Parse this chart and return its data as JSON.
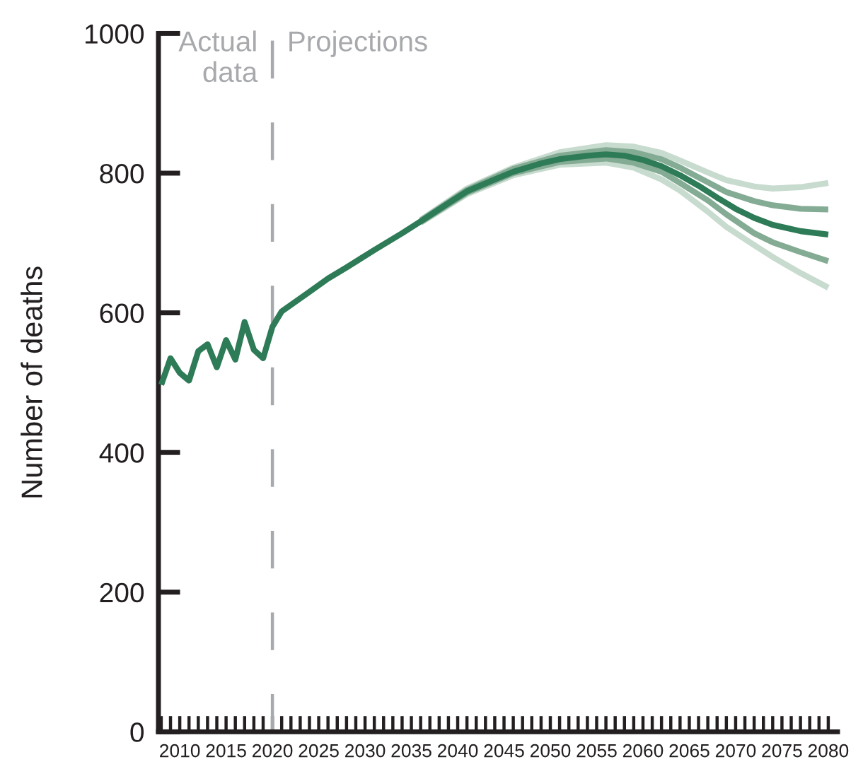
{
  "chart_data": {
    "type": "line",
    "ylabel": "Number of deaths",
    "xlim": [
      2007.7,
      2081
    ],
    "ylim": [
      0,
      1000
    ],
    "xticks": [
      {
        "value": 2008,
        "label": null
      },
      {
        "value": 2009,
        "label": null
      },
      2010,
      {
        "value": 2011,
        "label": null
      },
      {
        "value": 2012,
        "label": null
      },
      {
        "value": 2013,
        "label": null
      },
      {
        "value": 2014,
        "label": null
      },
      2015,
      {
        "value": 2016,
        "label": null
      },
      {
        "value": 2017,
        "label": null
      },
      {
        "value": 2018,
        "label": null
      },
      {
        "value": 2019,
        "label": null
      },
      2020,
      {
        "value": 2021,
        "label": null
      },
      {
        "value": 2022,
        "label": null
      },
      {
        "value": 2023,
        "label": null
      },
      {
        "value": 2024,
        "label": null
      },
      2025,
      {
        "value": 2026,
        "label": null
      },
      {
        "value": 2027,
        "label": null
      },
      {
        "value": 2028,
        "label": null
      },
      {
        "value": 2029,
        "label": null
      },
      2030,
      {
        "value": 2031,
        "label": null
      },
      {
        "value": 2032,
        "label": null
      },
      {
        "value": 2033,
        "label": null
      },
      {
        "value": 2034,
        "label": null
      },
      2035,
      {
        "value": 2036,
        "label": null
      },
      {
        "value": 2037,
        "label": null
      },
      {
        "value": 2038,
        "label": null
      },
      {
        "value": 2039,
        "label": null
      },
      2040,
      {
        "value": 2041,
        "label": null
      },
      {
        "value": 2042,
        "label": null
      },
      {
        "value": 2043,
        "label": null
      },
      {
        "value": 2044,
        "label": null
      },
      2045,
      {
        "value": 2046,
        "label": null
      },
      {
        "value": 2047,
        "label": null
      },
      {
        "value": 2048,
        "label": null
      },
      {
        "value": 2049,
        "label": null
      },
      2050,
      {
        "value": 2051,
        "label": null
      },
      {
        "value": 2052,
        "label": null
      },
      {
        "value": 2053,
        "label": null
      },
      {
        "value": 2054,
        "label": null
      },
      2055,
      {
        "value": 2056,
        "label": null
      },
      {
        "value": 2057,
        "label": null
      },
      {
        "value": 2058,
        "label": null
      },
      {
        "value": 2059,
        "label": null
      },
      2060,
      {
        "value": 2061,
        "label": null
      },
      {
        "value": 2062,
        "label": null
      },
      {
        "value": 2063,
        "label": null
      },
      {
        "value": 2064,
        "label": null
      },
      2065,
      {
        "value": 2066,
        "label": null
      },
      {
        "value": 2067,
        "label": null
      },
      {
        "value": 2068,
        "label": null
      },
      {
        "value": 2069,
        "label": null
      },
      2070,
      {
        "value": 2071,
        "label": null
      },
      {
        "value": 2072,
        "label": null
      },
      {
        "value": 2073,
        "label": null
      },
      {
        "value": 2074,
        "label": null
      },
      2075,
      {
        "value": 2076,
        "label": null
      },
      {
        "value": 2077,
        "label": null
      },
      {
        "value": 2078,
        "label": null
      },
      {
        "value": 2079,
        "label": null
      },
      2080
    ],
    "yticks": [
      0,
      200,
      400,
      600,
      800,
      1000
    ],
    "ref_lines": [
      {
        "axis": "x",
        "value": 2020,
        "color": "#a7a9ac",
        "line_style": "dashed"
      }
    ],
    "annotations": [
      "Actual\ndata",
      "Projections"
    ],
    "series": [
      {
        "color": "#c8dbcf",
        "x": [
          2036,
          2041,
          2046,
          2051,
          2056,
          2059,
          2062,
          2064,
          2067,
          2069,
          2072,
          2074,
          2077,
          2080
        ],
        "values": [
          733,
          778,
          808,
          830,
          840,
          838,
          829,
          818,
          801,
          790,
          781,
          778,
          780,
          786
        ]
      },
      {
        "color": "#c8dbcf",
        "x": [
          2036,
          2041,
          2046,
          2051,
          2056,
          2059,
          2062,
          2064,
          2067,
          2069,
          2072,
          2074,
          2077,
          2080
        ],
        "values": [
          729,
          770,
          797,
          812,
          815,
          808,
          791,
          775,
          745,
          723,
          697,
          680,
          657,
          636
        ]
      },
      {
        "color": "#84ab94",
        "x": [
          2036,
          2041,
          2046,
          2051,
          2056,
          2059,
          2062,
          2064,
          2067,
          2069,
          2072,
          2074,
          2077,
          2080
        ],
        "values": [
          732,
          776,
          806,
          825,
          833,
          830,
          820,
          808,
          787,
          773,
          760,
          754,
          749,
          748
        ]
      },
      {
        "color": "#84ab94",
        "x": [
          2036,
          2041,
          2046,
          2051,
          2056,
          2059,
          2062,
          2064,
          2067,
          2069,
          2072,
          2074,
          2077,
          2080
        ],
        "values": [
          730,
          772,
          800,
          816,
          821,
          815,
          802,
          786,
          761,
          741,
          714,
          701,
          687,
          674
        ]
      },
      {
        "color": "#2e7b58",
        "x": [
          2008,
          2009,
          2010,
          2011,
          2012,
          2013,
          2014,
          2015,
          2016,
          2017,
          2018,
          2019,
          2020,
          2021,
          2024,
          2026,
          2028,
          2031,
          2034,
          2036,
          2039,
          2041,
          2044,
          2046,
          2049,
          2051,
          2054,
          2056,
          2058,
          2060,
          2062,
          2064,
          2066,
          2068,
          2070,
          2072,
          2074,
          2077,
          2080
        ],
        "values": [
          497,
          535,
          514,
          503,
          545,
          555,
          522,
          561,
          533,
          587,
          547,
          535,
          580,
          602,
          630,
          649,
          665,
          690,
          714,
          731,
          757,
          774,
          791,
          802,
          814,
          820,
          825,
          827,
          825,
          819,
          810,
          797,
          782,
          765,
          749,
          736,
          726,
          717,
          712
        ]
      }
    ]
  }
}
